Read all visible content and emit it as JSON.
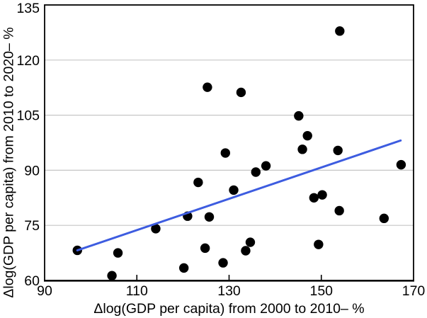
{
  "chart_data": {
    "type": "scatter",
    "title": "",
    "xlabel": "Δlog(GDP per capita) from 2000 to 2010– %",
    "ylabel": "Δlog(GDP per capita) from 2010 to 2020– %",
    "xlim": [
      90,
      170
    ],
    "ylim": [
      60,
      135
    ],
    "x_ticks": [
      90,
      110,
      130,
      150,
      170
    ],
    "y_ticks": [
      60,
      75,
      90,
      105,
      120,
      135
    ],
    "grid": "horizontal-only",
    "legend_position": "none",
    "colors": {
      "points": "#000000",
      "trendline": "#3d5ce0",
      "gridline": "#c6c6c6",
      "axis_frame": "#000000",
      "tick_text": "#000000"
    },
    "series": [
      {
        "name": "scatter-points",
        "type": "scatter",
        "marker": "circle",
        "marker_radius": 6.7,
        "points": [
          [
            97.1,
            68.2
          ],
          [
            104.6,
            61.3
          ],
          [
            105.9,
            67.5
          ],
          [
            114.1,
            74.1
          ],
          [
            120.2,
            63.4
          ],
          [
            121.0,
            77.5
          ],
          [
            123.3,
            86.7
          ],
          [
            124.8,
            68.8
          ],
          [
            125.3,
            112.6
          ],
          [
            125.7,
            77.3
          ],
          [
            128.7,
            64.8
          ],
          [
            129.2,
            94.7
          ],
          [
            131.0,
            84.6
          ],
          [
            132.6,
            111.2
          ],
          [
            133.6,
            68.1
          ],
          [
            134.6,
            70.4
          ],
          [
            135.8,
            89.5
          ],
          [
            138.0,
            91.2
          ],
          [
            145.1,
            104.8
          ],
          [
            145.9,
            95.7
          ],
          [
            147.0,
            99.4
          ],
          [
            148.4,
            82.5
          ],
          [
            149.4,
            69.8
          ],
          [
            150.2,
            83.3
          ],
          [
            153.6,
            95.4
          ],
          [
            153.9,
            79.0
          ],
          [
            154.0,
            127.9
          ],
          [
            163.6,
            76.9
          ],
          [
            167.3,
            91.5
          ]
        ]
      },
      {
        "name": "trendline",
        "type": "line",
        "line_width": 3,
        "points": [
          [
            97.1,
            68.2
          ],
          [
            167.2,
            98.1
          ]
        ]
      }
    ]
  }
}
